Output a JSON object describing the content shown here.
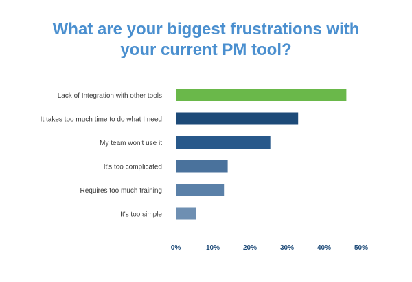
{
  "chart_data": {
    "type": "bar",
    "orientation": "horizontal",
    "title": "What are your biggest frustrations with your current PM tool?",
    "title_lines": [
      "What are your biggest frustrations with",
      "your current PM tool?"
    ],
    "categories": [
      "Lack of Integration with other tools",
      "It takes too much time to do what I need",
      "My team won't use it",
      "It's too complicated",
      "Requires too much training",
      "It's too simple"
    ],
    "values": [
      46,
      33,
      25.5,
      14,
      13,
      5.5
    ],
    "bar_colors": [
      "#6ab84a",
      "#1d4a78",
      "#28588a",
      "#4a729c",
      "#5a80a8",
      "#6e8fb2"
    ],
    "xlim": [
      0,
      50
    ],
    "x_ticks": [
      0,
      10,
      20,
      30,
      40,
      50
    ],
    "x_tick_labels": [
      "0%",
      "10%",
      "20%",
      "30%",
      "40%",
      "50%"
    ],
    "xlabel": "",
    "ylabel": "",
    "grid": false,
    "legend": "none",
    "colors": {
      "title": "#4a8fcf",
      "category_label": "#3a3a3a",
      "tick_label": "#1d4a78"
    }
  }
}
